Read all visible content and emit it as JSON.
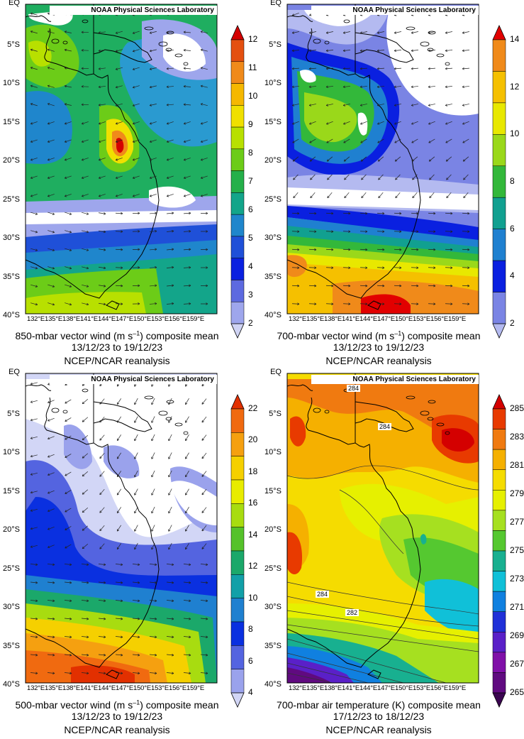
{
  "credit": "NOAA Physical Sciences Laboratory",
  "latitude_labels": [
    "EQ",
    "5°S",
    "10°S",
    "15°S",
    "20°S",
    "25°S",
    "30°S",
    "35°S",
    "40°S"
  ],
  "longitude_labels": [
    "132°E",
    "135°E",
    "138°E",
    "141°E",
    "144°E",
    "147°E",
    "150°E",
    "153°E",
    "156°E",
    "159°E"
  ],
  "panels": [
    {
      "id": "p850",
      "caption_pre": "850-mbar vector wind (m s",
      "caption_sup": "–1",
      "caption_post": ") composite mean",
      "dates": "13/12/23 to 19/12/23",
      "source": "NCEP/NCAR reanalysis",
      "colorbar": {
        "labels": [
          "12",
          "11",
          "10",
          "9",
          "8",
          "7",
          "6",
          "5",
          "4",
          "3",
          "2"
        ],
        "colors": [
          "#d40000",
          "#e45010",
          "#f08a1a",
          "#f5b800",
          "#f0e000",
          "#b8e000",
          "#6ccc18",
          "#25b04a",
          "#13a58a",
          "#1f86cc",
          "#1f50d8",
          "#0a20e0",
          "#5d6ae0",
          "#9ea6ec",
          "#d0d4f4"
        ]
      }
    },
    {
      "id": "p700w",
      "caption_pre": "700-mbar vector wind (m s",
      "caption_sup": "–1",
      "caption_post": ") composite mean",
      "dates": "13/12/23 to 19/12/23",
      "source": "NCEP/NCAR reanalysis",
      "colorbar": {
        "labels": [
          "14",
          "12",
          "10",
          "8",
          "6",
          "4",
          "2"
        ],
        "colors": [
          "#e20000",
          "#f08a1a",
          "#f5c000",
          "#e8e800",
          "#9ad81a",
          "#33b83a",
          "#11a090",
          "#1f80d0",
          "#0a20e0",
          "#7a84e4",
          "#b4baf0"
        ]
      }
    },
    {
      "id": "p500w",
      "caption_pre": "500-mbar vector wind (m s",
      "caption_sup": "–1",
      "caption_post": ") composite mean",
      "dates": "13/12/23 to 19/12/23",
      "source": "NCEP/NCAR reanalysis",
      "colorbar": {
        "labels": [
          "22",
          "20",
          "18",
          "16",
          "14",
          "12",
          "10",
          "8",
          "6",
          "4"
        ],
        "colors": [
          "#e23000",
          "#f06a10",
          "#f5a010",
          "#f5d000",
          "#e8ec00",
          "#a8dc10",
          "#55c22a",
          "#1ba86a",
          "#12a0a8",
          "#1f80d0",
          "#0a30e0",
          "#5464e0",
          "#9aa2ec",
          "#d2d6f6"
        ]
      }
    },
    {
      "id": "p700t",
      "caption_pre": "700-mbar air temperature (K) composite mean",
      "caption_sup": "",
      "caption_post": "",
      "dates": "17/12/23 to 18/12/23",
      "source": "NCEP/NCAR reanalysis",
      "contour_labels": [
        "284",
        "284",
        "284",
        "282"
      ],
      "colorbar": {
        "labels": [
          "285",
          "283",
          "281",
          "279",
          "277",
          "275",
          "273",
          "271",
          "269",
          "267",
          "265"
        ],
        "colors": [
          "#d40000",
          "#e83a00",
          "#f07a10",
          "#f5b000",
          "#f5dc00",
          "#e6f000",
          "#a6e020",
          "#55c830",
          "#18b090",
          "#10c0d8",
          "#1080e0",
          "#2030d8",
          "#5a20c8",
          "#8010a8",
          "#600a80",
          "#3a0550"
        ]
      }
    }
  ]
}
